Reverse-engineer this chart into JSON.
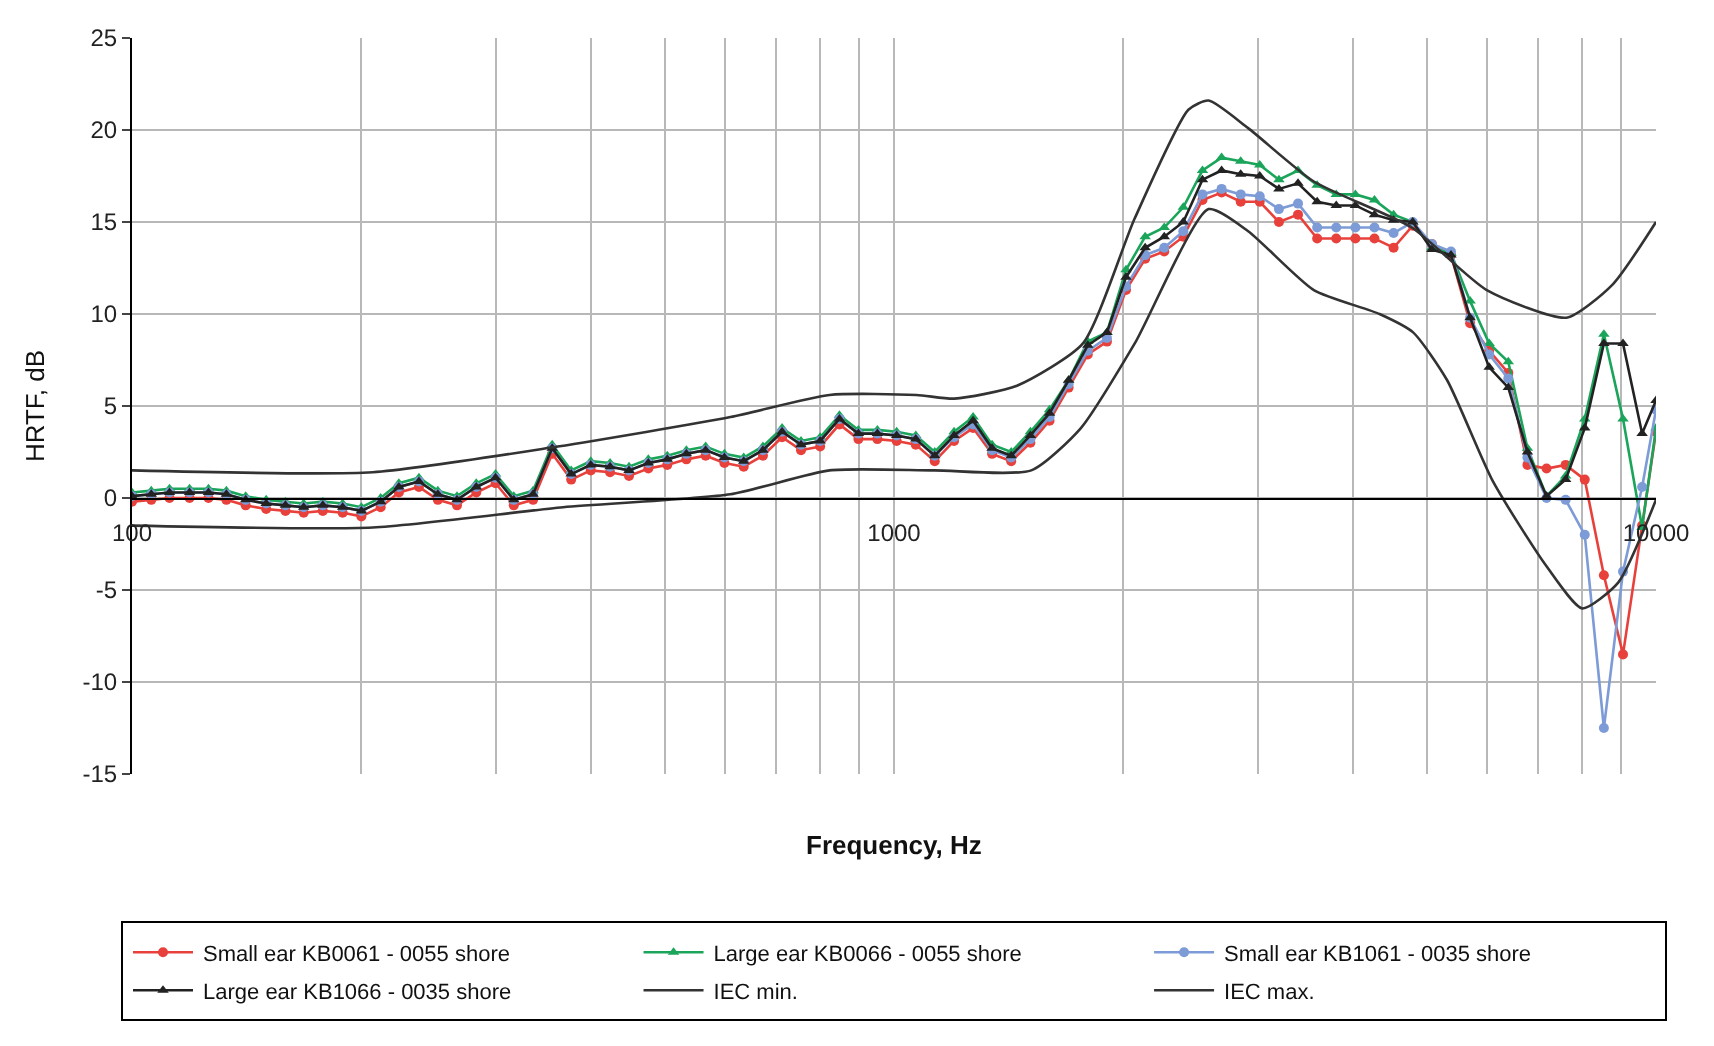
{
  "chart_data": {
    "type": "line",
    "xlabel": "Frequency, Hz",
    "ylabel": "HRTF, dB",
    "x": [
      100,
      106,
      112,
      119,
      126,
      133,
      141,
      150,
      159,
      168,
      178,
      189,
      200,
      212,
      224,
      238,
      252,
      267,
      283,
      300,
      317,
      336,
      356,
      377,
      400,
      424,
      449,
      476,
      504,
      534,
      566,
      599,
      635,
      673,
      713,
      755,
      800,
      848,
      898,
      951,
      1008,
      1068,
      1131,
      1199,
      1270,
      1345,
      1425,
      1510,
      1600,
      1695,
      1796,
      1903,
      2016,
      2136,
      2263,
      2397,
      2540,
      2691,
      2851,
      3020,
      3200,
      3390,
      3592,
      3805,
      4032,
      4271,
      4525,
      4795,
      5080,
      5382,
      5702,
      6041,
      6400,
      6781,
      7184,
      7611,
      8063,
      8543,
      9051,
      9589,
      10000
    ],
    "series": [
      {
        "name": "Small ear KB0061 - 0055 shore",
        "color": "#e8413c",
        "marker": "circle",
        "values": [
          -0.2,
          -0.1,
          0.0,
          0.0,
          0.0,
          -0.1,
          -0.4,
          -0.6,
          -0.7,
          -0.8,
          -0.7,
          -0.8,
          -1.0,
          -0.5,
          0.3,
          0.6,
          -0.1,
          -0.4,
          0.3,
          0.8,
          -0.4,
          -0.1,
          2.4,
          1.0,
          1.5,
          1.4,
          1.2,
          1.6,
          1.8,
          2.1,
          2.3,
          1.9,
          1.7,
          2.3,
          3.3,
          2.6,
          2.8,
          4.0,
          3.2,
          3.2,
          3.1,
          2.9,
          2.0,
          3.1,
          3.8,
          2.4,
          2.0,
          3.0,
          4.2,
          6.0,
          7.8,
          8.5,
          11.3,
          13.0,
          13.4,
          14.2,
          16.2,
          16.6,
          16.1,
          16.1,
          15.0,
          15.4,
          14.1,
          14.1,
          14.1,
          14.1,
          13.6,
          14.8,
          13.8,
          13.2,
          9.5,
          8.0,
          6.8,
          1.8,
          1.6,
          1.8,
          1.0,
          -4.2,
          -8.5,
          -1.5,
          3.6
        ]
      },
      {
        "name": "Large ear KB0066 - 0055 shore",
        "color": "#1aa55a",
        "marker": "triangle",
        "values": [
          0.3,
          0.4,
          0.5,
          0.5,
          0.5,
          0.4,
          0.1,
          -0.1,
          -0.2,
          -0.3,
          -0.2,
          -0.3,
          -0.5,
          0.0,
          0.8,
          1.1,
          0.4,
          0.1,
          0.8,
          1.3,
          0.1,
          0.4,
          2.9,
          1.5,
          2.0,
          1.9,
          1.7,
          2.1,
          2.3,
          2.6,
          2.8,
          2.4,
          2.2,
          2.8,
          3.8,
          3.1,
          3.3,
          4.5,
          3.7,
          3.7,
          3.6,
          3.4,
          2.5,
          3.6,
          4.4,
          2.9,
          2.5,
          3.6,
          4.8,
          6.4,
          8.5,
          9.0,
          12.4,
          14.2,
          14.7,
          15.8,
          17.8,
          18.5,
          18.3,
          18.1,
          17.3,
          17.8,
          17.0,
          16.5,
          16.5,
          16.2,
          15.4,
          15.0,
          13.6,
          13.3,
          10.7,
          8.4,
          7.4,
          2.7,
          0.1,
          1.2,
          4.3,
          8.9,
          4.3,
          -1.6,
          3.8
        ]
      },
      {
        "name": "Small ear KB1061 - 0035 shore",
        "color": "#7d9bd6",
        "marker": "circle",
        "values": [
          0.1,
          0.2,
          0.3,
          0.3,
          0.3,
          0.2,
          -0.1,
          -0.3,
          -0.4,
          -0.5,
          -0.4,
          -0.5,
          -0.7,
          -0.2,
          0.6,
          0.9,
          0.2,
          -0.1,
          0.6,
          1.1,
          -0.1,
          0.2,
          2.7,
          1.3,
          1.8,
          1.7,
          1.5,
          1.9,
          2.1,
          2.4,
          2.6,
          2.2,
          2.0,
          2.6,
          3.6,
          2.9,
          3.1,
          4.3,
          3.5,
          3.5,
          3.4,
          3.2,
          2.3,
          3.3,
          4.0,
          2.6,
          2.2,
          3.2,
          4.4,
          6.2,
          8.0,
          8.7,
          11.5,
          13.2,
          13.6,
          14.5,
          16.5,
          16.8,
          16.5,
          16.4,
          15.7,
          16.0,
          14.7,
          14.7,
          14.7,
          14.7,
          14.4,
          15.0,
          13.8,
          13.4,
          9.8,
          7.8,
          6.5,
          2.2,
          0.0,
          -0.1,
          -2.0,
          -12.5,
          -4.0,
          0.6,
          4.8
        ]
      },
      {
        "name": "Large ear KB1066 - 0035 shore",
        "color": "#222222",
        "marker": "triangle",
        "values": [
          0.1,
          0.2,
          0.3,
          0.3,
          0.3,
          0.2,
          -0.1,
          -0.3,
          -0.4,
          -0.5,
          -0.4,
          -0.5,
          -0.7,
          -0.2,
          0.6,
          0.9,
          0.2,
          -0.1,
          0.6,
          1.1,
          -0.1,
          0.2,
          2.7,
          1.3,
          1.8,
          1.7,
          1.5,
          1.9,
          2.1,
          2.4,
          2.6,
          2.2,
          2.0,
          2.6,
          3.6,
          2.9,
          3.1,
          4.3,
          3.5,
          3.5,
          3.4,
          3.2,
          2.3,
          3.4,
          4.2,
          2.7,
          2.3,
          3.4,
          4.6,
          6.4,
          8.3,
          9.0,
          12.0,
          13.6,
          14.2,
          15.0,
          17.3,
          17.8,
          17.6,
          17.5,
          16.8,
          17.1,
          16.1,
          15.9,
          15.9,
          15.4,
          15.1,
          15.0,
          13.5,
          13.2,
          9.8,
          7.1,
          6.0,
          2.5,
          0.1,
          1.0,
          3.8,
          8.4,
          8.4,
          3.5,
          5.3
        ]
      },
      {
        "name": "IEC min.",
        "color": "#333333",
        "marker": "none",
        "x": [
          100,
          207,
          368,
          610,
          823,
          1130,
          1514,
          1759,
          2070,
          2587,
          2916,
          3556,
          4337,
          4800,
          5320,
          6110,
          7180,
          8000,
          8920,
          10000
        ],
        "values": [
          -1.5,
          -1.6,
          -0.5,
          0.2,
          1.5,
          1.5,
          1.5,
          3.8,
          8.4,
          15.7,
          14.5,
          11.3,
          10.0,
          9.0,
          6.4,
          0.9,
          -3.7,
          -6.0,
          -4.6,
          -0.1
        ]
      },
      {
        "name": "IEC max.",
        "color": "#333333",
        "marker": "none",
        "x": [
          100,
          207,
          362,
          610,
          823,
          1070,
          1200,
          1450,
          1770,
          2070,
          2434,
          2587,
          2916,
          3556,
          4780,
          5997,
          7630,
          8770,
          10000
        ],
        "values": [
          1.5,
          1.4,
          2.8,
          4.4,
          5.6,
          5.6,
          5.4,
          6.1,
          8.4,
          15.2,
          21.1,
          21.6,
          20.1,
          17.2,
          14.7,
          11.3,
          9.8,
          11.6,
          15.0
        ]
      }
    ],
    "log": "x",
    "xlim": [
      100,
      10000
    ],
    "xticks": [
      100,
      {
        "value": 200,
        "label": null
      },
      {
        "value": 300,
        "label": null
      },
      {
        "value": 400,
        "label": null
      },
      {
        "value": 500,
        "label": null
      },
      {
        "value": 600,
        "label": null
      },
      {
        "value": 700,
        "label": null
      },
      {
        "value": 800,
        "label": null
      },
      {
        "value": 900,
        "label": null
      },
      1000,
      {
        "value": 2000,
        "label": null
      },
      {
        "value": 3000,
        "label": null
      },
      {
        "value": 4000,
        "label": null
      },
      {
        "value": 5000,
        "label": null
      },
      {
        "value": 6000,
        "label": null
      },
      {
        "value": 7000,
        "label": null
      },
      {
        "value": 8000,
        "label": null
      },
      {
        "value": 9000,
        "label": null
      },
      10000
    ],
    "ylim": [
      -15,
      25
    ],
    "yticks": [
      -15,
      -10,
      -5,
      0,
      5,
      10,
      15,
      20,
      25
    ],
    "grid": true,
    "legend": "bottom",
    "line_style": "solid"
  }
}
